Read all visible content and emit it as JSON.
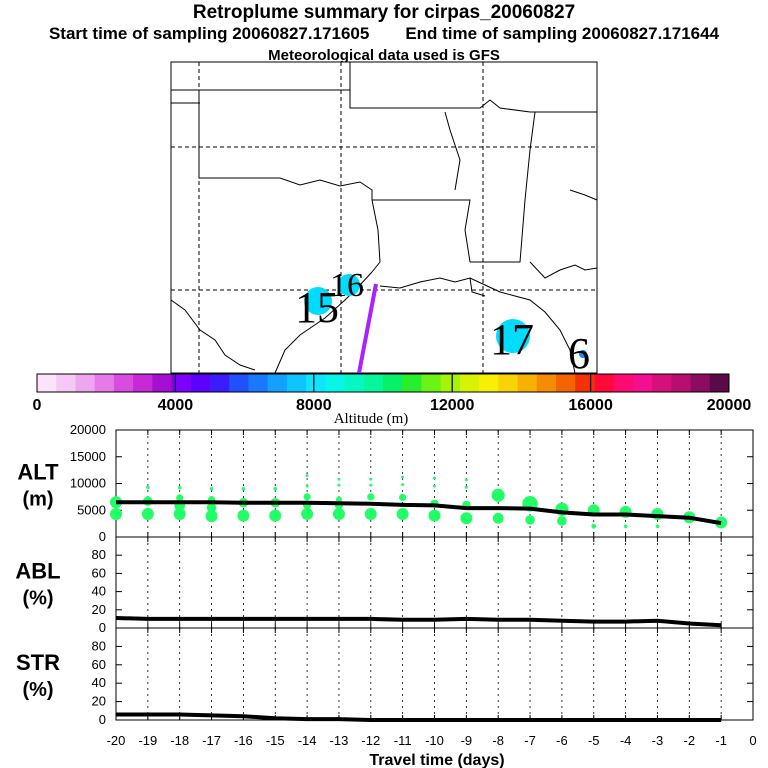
{
  "title": "Retroplume summary for cirpas_20060827",
  "start_time_label": "Start time of sampling 20060827.171605",
  "end_time_label": "End time of sampling 20060827.171644",
  "met_label": "Meteorological data used is GFS",
  "colors": {
    "plume": "#22ff66",
    "release": "#00dcff",
    "track": "#aa22ff",
    "line": "#000000"
  },
  "map": {
    "day_labels": [
      {
        "text": "15",
        "color": "#000000"
      },
      {
        "text": "16",
        "color": "#000000"
      },
      {
        "text": "17",
        "color": "#000000"
      },
      {
        "text": "6",
        "color": "#000000"
      }
    ]
  },
  "colorbar": {
    "ticks": [
      "0",
      "4000",
      "8000",
      "12000",
      "16000",
      "20000"
    ],
    "label": "Altitude (m)",
    "colors": [
      "#fbe4fb",
      "#f5c8f5",
      "#eea6ee",
      "#e57ae8",
      "#d84ce0",
      "#c629d6",
      "#a40fd0",
      "#7e00ff",
      "#5c00ff",
      "#3b1cff",
      "#2050ff",
      "#1a78ff",
      "#14a0ff",
      "#10c4ff",
      "#0ee4ff",
      "#0af5ea",
      "#07f7c2",
      "#05f79a",
      "#07f067",
      "#28ee2e",
      "#6cf214",
      "#a6f209",
      "#d6f305",
      "#f7ef04",
      "#f8d404",
      "#f6b203",
      "#f58c03",
      "#f46403",
      "#f23203",
      "#ff0a38",
      "#ff0a70",
      "#f21090",
      "#d6107a",
      "#b70e6f",
      "#8c0c62",
      "#5a0a48"
    ]
  },
  "chart_data": {
    "type": "scatter",
    "title": "Retroplume summary for cirpas_20060827",
    "xlabel": "Travel time (days)",
    "x_ticks": [
      "-20",
      "-19",
      "-18",
      "-17",
      "-16",
      "-15",
      "-14",
      "-13",
      "-12",
      "-11",
      "-10",
      "-9",
      "-8",
      "-7",
      "-6",
      "-5",
      "-4",
      "-3",
      "-2",
      "-1",
      "0"
    ],
    "xlim": [
      -20,
      0
    ],
    "panels": [
      {
        "name": "alt",
        "ylabel": "ALT",
        "yunit": "(m)",
        "ylim": [
          0,
          20000
        ],
        "y_ticks": [
          "20000",
          "15000",
          "10000",
          "5000",
          "0"
        ],
        "tick_values": [
          20000,
          15000,
          10000,
          5000,
          0
        ],
        "line": {
          "x": [
            -20,
            -19,
            -18,
            -17,
            -16,
            -15,
            -14,
            -13,
            -12,
            -11,
            -10,
            -9,
            -8,
            -7,
            -6,
            -5,
            -4,
            -3,
            -2,
            -1
          ],
          "y": [
            6500,
            6500,
            6500,
            6500,
            6400,
            6400,
            6400,
            6300,
            6200,
            6000,
            5900,
            5400,
            5400,
            5300,
            4600,
            4200,
            4200,
            3900,
            3600,
            2600
          ]
        },
        "points": [
          {
            "x": -20,
            "y": 6500,
            "s": 1.0
          },
          {
            "x": -20,
            "y": 4300,
            "s": 1.0
          },
          {
            "x": -19,
            "y": 9300,
            "s": 0.3
          },
          {
            "x": -19,
            "y": 6700,
            "s": 0.8
          },
          {
            "x": -19,
            "y": 4300,
            "s": 1.0
          },
          {
            "x": -18,
            "y": 9200,
            "s": 0.3
          },
          {
            "x": -18,
            "y": 7300,
            "s": 0.6
          },
          {
            "x": -18,
            "y": 5900,
            "s": 0.9
          },
          {
            "x": -18,
            "y": 4300,
            "s": 1.0
          },
          {
            "x": -17,
            "y": 9000,
            "s": 0.3
          },
          {
            "x": -17,
            "y": 7000,
            "s": 0.6
          },
          {
            "x": -17,
            "y": 5500,
            "s": 0.8
          },
          {
            "x": -17,
            "y": 3900,
            "s": 1.0
          },
          {
            "x": -16,
            "y": 9000,
            "s": 0.3
          },
          {
            "x": -16,
            "y": 6400,
            "s": 0.8
          },
          {
            "x": -16,
            "y": 4000,
            "s": 1.0
          },
          {
            "x": -15,
            "y": 9000,
            "s": 0.3
          },
          {
            "x": -15,
            "y": 6400,
            "s": 0.8
          },
          {
            "x": -15,
            "y": 4000,
            "s": 1.0
          },
          {
            "x": -14,
            "y": 11500,
            "s": 0.15
          },
          {
            "x": -14,
            "y": 9500,
            "s": 0.2
          },
          {
            "x": -14,
            "y": 7500,
            "s": 0.6
          },
          {
            "x": -14,
            "y": 6000,
            "s": 0.7
          },
          {
            "x": -14,
            "y": 4300,
            "s": 1.0
          },
          {
            "x": -13,
            "y": 10800,
            "s": 0.2
          },
          {
            "x": -13,
            "y": 9700,
            "s": 0.2
          },
          {
            "x": -13,
            "y": 7000,
            "s": 0.5
          },
          {
            "x": -13,
            "y": 6000,
            "s": 0.7
          },
          {
            "x": -13,
            "y": 4300,
            "s": 1.0
          },
          {
            "x": -12,
            "y": 10800,
            "s": 0.2
          },
          {
            "x": -12,
            "y": 9700,
            "s": 0.2
          },
          {
            "x": -12,
            "y": 7500,
            "s": 0.6
          },
          {
            "x": -12,
            "y": 4300,
            "s": 1.0
          },
          {
            "x": -11,
            "y": 11200,
            "s": 0.2
          },
          {
            "x": -11,
            "y": 9800,
            "s": 0.2
          },
          {
            "x": -11,
            "y": 7400,
            "s": 0.6
          },
          {
            "x": -11,
            "y": 4300,
            "s": 1.0
          },
          {
            "x": -10,
            "y": 11000,
            "s": 0.2
          },
          {
            "x": -10,
            "y": 9500,
            "s": 0.2
          },
          {
            "x": -10,
            "y": 6200,
            "s": 0.7
          },
          {
            "x": -10,
            "y": 4000,
            "s": 1.0
          },
          {
            "x": -9,
            "y": 10700,
            "s": 0.2
          },
          {
            "x": -9,
            "y": 9300,
            "s": 0.2
          },
          {
            "x": -9,
            "y": 6000,
            "s": 0.7
          },
          {
            "x": -9,
            "y": 3500,
            "s": 1.0
          },
          {
            "x": -8,
            "y": 7800,
            "s": 1.1
          },
          {
            "x": -8,
            "y": 3500,
            "s": 0.9
          },
          {
            "x": -7,
            "y": 6200,
            "s": 1.3
          },
          {
            "x": -7,
            "y": 3200,
            "s": 0.8
          },
          {
            "x": -6,
            "y": 5200,
            "s": 1.1
          },
          {
            "x": -6,
            "y": 3000,
            "s": 0.8
          },
          {
            "x": -5,
            "y": 5000,
            "s": 1.0
          },
          {
            "x": -5,
            "y": 2000,
            "s": 0.4
          },
          {
            "x": -4,
            "y": 4700,
            "s": 1.0
          },
          {
            "x": -4,
            "y": 2000,
            "s": 0.3
          },
          {
            "x": -3,
            "y": 4300,
            "s": 1.0
          },
          {
            "x": -3,
            "y": 2000,
            "s": 0.3
          },
          {
            "x": -2,
            "y": 3700,
            "s": 1.0
          },
          {
            "x": -1,
            "y": 2700,
            "s": 1.0
          }
        ]
      },
      {
        "name": "abl",
        "ylabel": "ABL",
        "yunit": "(%)",
        "ylim": [
          0,
          100
        ],
        "y_ticks": [
          "80",
          "60",
          "40",
          "20",
          "0"
        ],
        "tick_values": [
          80,
          60,
          40,
          20,
          0
        ],
        "line": {
          "x": [
            -20,
            -19,
            -18,
            -17,
            -16,
            -15,
            -14,
            -13,
            -12,
            -11,
            -10,
            -9,
            -8,
            -7,
            -6,
            -5,
            -4,
            -3,
            -2,
            -1
          ],
          "y": [
            11,
            10,
            10,
            10,
            10,
            10,
            10,
            10,
            10,
            9,
            9,
            10,
            9,
            9,
            8,
            7,
            7,
            8,
            5,
            3
          ]
        }
      },
      {
        "name": "str",
        "ylabel": "STR",
        "yunit": "(%)",
        "ylim": [
          0,
          100
        ],
        "y_ticks": [
          "80",
          "60",
          "40",
          "20",
          "0"
        ],
        "tick_values": [
          80,
          60,
          40,
          20,
          0
        ],
        "line": {
          "x": [
            -20,
            -19,
            -18,
            -17,
            -16,
            -15,
            -14,
            -13,
            -12,
            -11,
            -10,
            -9,
            -8,
            -7,
            -6,
            -5,
            -4,
            -3,
            -2,
            -1
          ],
          "y": [
            6,
            6,
            6,
            5,
            4,
            2,
            1,
            1,
            0,
            0,
            0,
            0,
            0,
            0,
            0,
            0,
            0,
            0,
            0,
            0
          ]
        }
      }
    ]
  }
}
